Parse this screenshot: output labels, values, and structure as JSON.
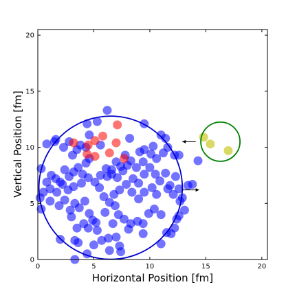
{
  "chart_data": {
    "type": "scatter",
    "xlabel": "Horizontal Position [fm]",
    "ylabel": "Vertical Position [fm]",
    "xlim": [
      0,
      20.5
    ],
    "ylim": [
      0,
      20.5
    ],
    "xticks": [
      "0",
      "5",
      "10",
      "15",
      "20"
    ],
    "yticks": [
      "0",
      "5",
      "10",
      "15",
      "20"
    ],
    "grid": false,
    "series": [
      {
        "color": "#0000ff",
        "opacity": 0.55,
        "points": [
          [
            0.8,
            10.3
          ],
          [
            1.5,
            10.5
          ],
          [
            1.6,
            10.7
          ],
          [
            2.3,
            10.0
          ],
          [
            2.8,
            10.5
          ],
          [
            3.1,
            9.3
          ],
          [
            3.5,
            9.8
          ],
          [
            3.8,
            10.2
          ],
          [
            4.3,
            10.0
          ],
          [
            0.3,
            8.1
          ],
          [
            0.8,
            6.9
          ],
          [
            1.2,
            7.5
          ],
          [
            1.6,
            7.2
          ],
          [
            2.0,
            6.9
          ],
          [
            2.4,
            8.0
          ],
          [
            2.8,
            7.4
          ],
          [
            3.2,
            7.8
          ],
          [
            3.6,
            8.2
          ],
          [
            4.0,
            7.6
          ],
          [
            4.3,
            8.6
          ],
          [
            4.5,
            7.3
          ],
          [
            3.9,
            6.8
          ],
          [
            3.2,
            6.5
          ],
          [
            2.7,
            6.2
          ],
          [
            2.2,
            6.7
          ],
          [
            1.7,
            6.0
          ],
          [
            1.1,
            6.3
          ],
          [
            0.5,
            6.0
          ],
          [
            0.2,
            5.5
          ],
          [
            0.3,
            4.5
          ],
          [
            1.1,
            5.2
          ],
          [
            1.9,
            4.8
          ],
          [
            2.4,
            5.3
          ],
          [
            2.9,
            4.4
          ],
          [
            3.3,
            5.0
          ],
          [
            3.7,
            4.6
          ],
          [
            4.2,
            5.2
          ],
          [
            4.6,
            4.1
          ],
          [
            3.0,
            3.8
          ],
          [
            3.5,
            2.8
          ],
          [
            4.1,
            3.2
          ],
          [
            4.5,
            2.8
          ],
          [
            4.9,
            3.5
          ],
          [
            5.3,
            2.6
          ],
          [
            3.3,
            1.7
          ],
          [
            3.6,
            1.5
          ],
          [
            4.4,
            0.5
          ],
          [
            3.3,
            0.0
          ],
          [
            2.0,
            1.8
          ],
          [
            5.0,
            1.3
          ],
          [
            5.7,
            1.7
          ],
          [
            6.3,
            1.9
          ],
          [
            7.0,
            2.0
          ],
          [
            7.3,
            1.2
          ],
          [
            7.4,
            0.7
          ],
          [
            6.4,
            0.8
          ],
          [
            5.2,
            3.3
          ],
          [
            6.0,
            4.2
          ],
          [
            6.7,
            3.2
          ],
          [
            7.2,
            4.0
          ],
          [
            7.7,
            3.6
          ],
          [
            8.3,
            3.2
          ],
          [
            8.9,
            3.4
          ],
          [
            9.4,
            2.3
          ],
          [
            9.4,
            3.2
          ],
          [
            9.9,
            4.1
          ],
          [
            10.4,
            4.5
          ],
          [
            11.0,
            4.0
          ],
          [
            11.5,
            2.4
          ],
          [
            11.9,
            2.3
          ],
          [
            11.0,
            1.4
          ],
          [
            12.2,
            2.8
          ],
          [
            12.6,
            3.9
          ],
          [
            12.4,
            3.6
          ],
          [
            13.1,
            4.4
          ],
          [
            12.7,
            5.2
          ],
          [
            12.1,
            5.8
          ],
          [
            11.6,
            6.3
          ],
          [
            10.6,
            5.8
          ],
          [
            10.2,
            6.4
          ],
          [
            9.5,
            6.0
          ],
          [
            9.0,
            5.4
          ],
          [
            8.4,
            6.0
          ],
          [
            7.9,
            6.7
          ],
          [
            7.3,
            6.2
          ],
          [
            6.8,
            5.8
          ],
          [
            6.4,
            5.1
          ],
          [
            5.9,
            5.6
          ],
          [
            5.5,
            6.4
          ],
          [
            5.1,
            6.9
          ],
          [
            5.6,
            7.5
          ],
          [
            6.1,
            8.1
          ],
          [
            6.6,
            7.6
          ],
          [
            7.1,
            7.3
          ],
          [
            7.6,
            7.9
          ],
          [
            8.0,
            8.4
          ],
          [
            8.5,
            7.2
          ],
          [
            9.0,
            6.8
          ],
          [
            9.5,
            7.6
          ],
          [
            10.0,
            8.2
          ],
          [
            10.5,
            7.6
          ],
          [
            10.9,
            7.0
          ],
          [
            11.4,
            7.7
          ],
          [
            11.8,
            6.6
          ],
          [
            12.3,
            7.4
          ],
          [
            12.6,
            6.3
          ],
          [
            12.9,
            5.5
          ],
          [
            13.4,
            6.6
          ],
          [
            13.8,
            6.7
          ],
          [
            9.4,
            8.7
          ],
          [
            10.1,
            9.4
          ],
          [
            10.6,
            9.0
          ],
          [
            11.2,
            9.5
          ],
          [
            11.6,
            10.0
          ],
          [
            12.2,
            9.3
          ],
          [
            12.6,
            9.3
          ],
          [
            11.4,
            10.8
          ],
          [
            11.0,
            11.1
          ],
          [
            10.3,
            10.1
          ],
          [
            9.5,
            9.8
          ],
          [
            9.1,
            9.6
          ],
          [
            8.8,
            8.2
          ],
          [
            8.3,
            8.8
          ],
          [
            7.8,
            9.3
          ],
          [
            7.4,
            8.3
          ],
          [
            7.0,
            8.7
          ],
          [
            6.6,
            8.0
          ],
          [
            6.2,
            7.4
          ],
          [
            4.6,
            9.0
          ],
          [
            4.4,
            12.1
          ],
          [
            5.3,
            12.3
          ],
          [
            6.2,
            13.3
          ],
          [
            9.5,
            12.1
          ],
          [
            5.6,
            10.2
          ],
          [
            14.3,
            8.8
          ],
          [
            4.6,
            11.1
          ],
          [
            8.2,
            10.8
          ],
          [
            6.9,
            4.8
          ],
          [
            8.1,
            2.7
          ]
        ]
      },
      {
        "color": "#ff0000",
        "opacity": 0.55,
        "points": [
          [
            3.2,
            10.4
          ],
          [
            4.5,
            10.2
          ],
          [
            5.1,
            10.6
          ],
          [
            5.8,
            11.0
          ],
          [
            7.1,
            12.0
          ],
          [
            4.4,
            9.4
          ],
          [
            5.1,
            9.2
          ],
          [
            6.4,
            9.5
          ],
          [
            7.0,
            10.4
          ],
          [
            7.7,
            9.0
          ]
        ]
      },
      {
        "color": "#cccc33",
        "opacity": 0.75,
        "points": [
          [
            14.8,
            10.9
          ],
          [
            15.4,
            10.3
          ],
          [
            17.0,
            9.7
          ]
        ]
      }
    ],
    "circles": [
      {
        "cx": 6.5,
        "cy": 6.4,
        "r": 6.4,
        "color": "#0000cc"
      },
      {
        "cx": 16.3,
        "cy": 10.5,
        "r": 1.75,
        "color": "#008000"
      }
    ],
    "arrows": [
      {
        "from": [
          14.1,
          10.5
        ],
        "to": [
          12.9,
          10.5
        ]
      },
      {
        "from": [
          12.9,
          6.2
        ],
        "to": [
          14.4,
          6.2
        ]
      }
    ]
  }
}
